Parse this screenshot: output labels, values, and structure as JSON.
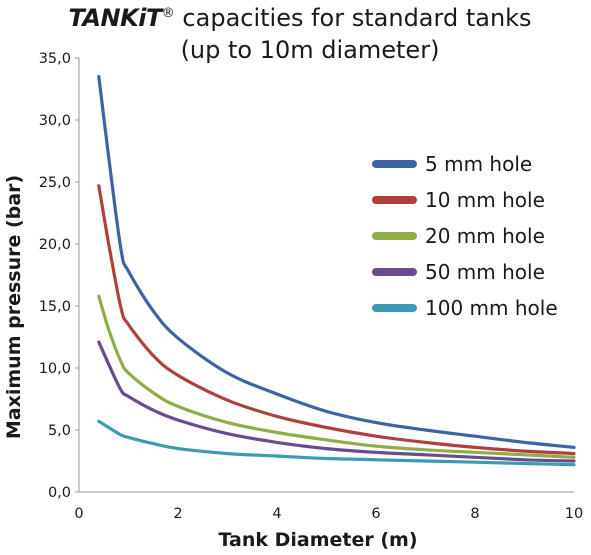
{
  "chart_data": {
    "type": "line",
    "title": {
      "brand": "TANKiT",
      "mark": "®",
      "line1_rest": " capacities for standard tanks",
      "line2": "(up to 10m diameter)"
    },
    "xlabel": "Tank Diameter (m)",
    "ylabel": "Maximum pressure (bar)",
    "xlim": [
      0,
      10
    ],
    "ylim": [
      0,
      35
    ],
    "x_ticks": [
      "0",
      "2",
      "4",
      "6",
      "8",
      "10"
    ],
    "y_ticks": [
      "0,0",
      "5,0",
      "10,0",
      "15,0",
      "20,0",
      "25,0",
      "30,0",
      "35,0"
    ],
    "grid": false,
    "legend_position": "right",
    "series": [
      {
        "name": "5 mm hole",
        "color": "#3e63a6",
        "points": [
          [
            0.4,
            33.5
          ],
          [
            0.6,
            27.0
          ],
          [
            0.85,
            19.5
          ],
          [
            1.0,
            17.8
          ],
          [
            1.5,
            14.6
          ],
          [
            2.0,
            12.4
          ],
          [
            3.0,
            9.6
          ],
          [
            4.0,
            7.9
          ],
          [
            5.0,
            6.5
          ],
          [
            6.0,
            5.6
          ],
          [
            7.0,
            5.0
          ],
          [
            8.0,
            4.5
          ],
          [
            9.0,
            4.0
          ],
          [
            10.0,
            3.6
          ]
        ]
      },
      {
        "name": "10 mm hole",
        "color": "#b0403d",
        "points": [
          [
            0.4,
            24.7
          ],
          [
            0.6,
            20.0
          ],
          [
            0.85,
            14.8
          ],
          [
            1.0,
            13.5
          ],
          [
            1.5,
            11.0
          ],
          [
            2.0,
            9.4
          ],
          [
            3.0,
            7.4
          ],
          [
            4.0,
            6.1
          ],
          [
            5.0,
            5.2
          ],
          [
            6.0,
            4.5
          ],
          [
            7.0,
            4.0
          ],
          [
            8.0,
            3.6
          ],
          [
            9.0,
            3.3
          ],
          [
            10.0,
            3.1
          ]
        ]
      },
      {
        "name": "20 mm hole",
        "color": "#8fae47",
        "points": [
          [
            0.4,
            15.8
          ],
          [
            0.6,
            13.1
          ],
          [
            0.85,
            10.5
          ],
          [
            1.0,
            9.6
          ],
          [
            1.5,
            8.0
          ],
          [
            2.0,
            6.9
          ],
          [
            3.0,
            5.6
          ],
          [
            4.0,
            4.8
          ],
          [
            5.0,
            4.2
          ],
          [
            6.0,
            3.7
          ],
          [
            7.0,
            3.4
          ],
          [
            8.0,
            3.2
          ],
          [
            9.0,
            3.0
          ],
          [
            10.0,
            2.8
          ]
        ]
      },
      {
        "name": "50 mm hole",
        "color": "#6a4b92",
        "points": [
          [
            0.4,
            12.1
          ],
          [
            0.6,
            10.3
          ],
          [
            0.85,
            8.2
          ],
          [
            1.0,
            7.7
          ],
          [
            1.5,
            6.6
          ],
          [
            2.0,
            5.8
          ],
          [
            3.0,
            4.7
          ],
          [
            4.0,
            4.0
          ],
          [
            5.0,
            3.5
          ],
          [
            6.0,
            3.2
          ],
          [
            7.0,
            3.0
          ],
          [
            8.0,
            2.8
          ],
          [
            9.0,
            2.6
          ],
          [
            10.0,
            2.5
          ]
        ]
      },
      {
        "name": "100 mm hole",
        "color": "#3b9bb3",
        "points": [
          [
            0.4,
            5.7
          ],
          [
            0.6,
            5.2
          ],
          [
            0.85,
            4.6
          ],
          [
            1.0,
            4.4
          ],
          [
            1.5,
            3.9
          ],
          [
            2.0,
            3.5
          ],
          [
            3.0,
            3.1
          ],
          [
            4.0,
            2.9
          ],
          [
            5.0,
            2.7
          ],
          [
            6.0,
            2.6
          ],
          [
            7.0,
            2.5
          ],
          [
            8.0,
            2.4
          ],
          [
            9.0,
            2.3
          ],
          [
            10.0,
            2.2
          ]
        ]
      }
    ]
  }
}
